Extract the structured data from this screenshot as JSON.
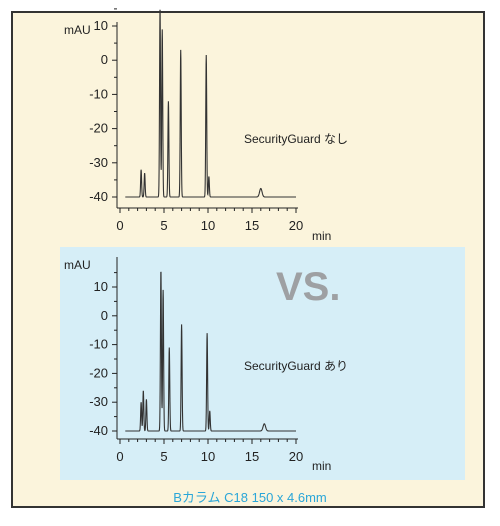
{
  "chart_data": [
    {
      "type": "line",
      "ylabel": "mAU",
      "xlabel": "min",
      "xlim": [
        0,
        20
      ],
      "ylim": [
        -42,
        16
      ],
      "xticks": [
        0,
        5,
        10,
        15,
        20
      ],
      "yticks": [
        10,
        0,
        -10,
        -20,
        -30,
        -40
      ],
      "xtick_labels": [
        "0",
        "5",
        "10",
        "15",
        "20"
      ],
      "ytick_labels": [
        "10",
        "0",
        "-10",
        "-20",
        "-30",
        "-40"
      ],
      "baseline": -40,
      "peaks": [
        {
          "rt": 2.4,
          "height": -32
        },
        {
          "rt": 2.8,
          "height": -33
        },
        {
          "rt": 4.55,
          "height": 15.5
        },
        {
          "rt": 4.8,
          "height": 9
        },
        {
          "rt": 5.5,
          "height": -12
        },
        {
          "rt": 6.9,
          "height": 3
        },
        {
          "rt": 9.8,
          "height": 1.5
        },
        {
          "rt": 10.1,
          "height": -34
        },
        {
          "rt": 16.0,
          "height": -37.5
        }
      ],
      "annotation": "SecurityGuard なし"
    },
    {
      "type": "line",
      "ylabel": "mAU",
      "xlabel": "min",
      "xlim": [
        0,
        20
      ],
      "ylim": [
        -42,
        16
      ],
      "xticks": [
        0,
        5,
        10,
        15,
        20
      ],
      "yticks": [
        10,
        0,
        -10,
        -20,
        -30,
        -40
      ],
      "xtick_labels": [
        "0",
        "5",
        "10",
        "15",
        "20"
      ],
      "ytick_labels": [
        "10",
        "0",
        "-10",
        "-20",
        "-30",
        "-40"
      ],
      "baseline": -40,
      "peaks": [
        {
          "rt": 2.4,
          "height": -30
        },
        {
          "rt": 2.65,
          "height": -26
        },
        {
          "rt": 3.0,
          "height": -29
        },
        {
          "rt": 4.65,
          "height": 16
        },
        {
          "rt": 4.9,
          "height": 9
        },
        {
          "rt": 5.6,
          "height": -11
        },
        {
          "rt": 7.0,
          "height": -3
        },
        {
          "rt": 9.9,
          "height": -6
        },
        {
          "rt": 10.2,
          "height": -33
        },
        {
          "rt": 16.4,
          "height": -37.5
        }
      ],
      "annotation": "SecurityGuard あり"
    }
  ],
  "vs_label": "VS.",
  "caption": "Bカラム  C18 150 x 4.6mm"
}
